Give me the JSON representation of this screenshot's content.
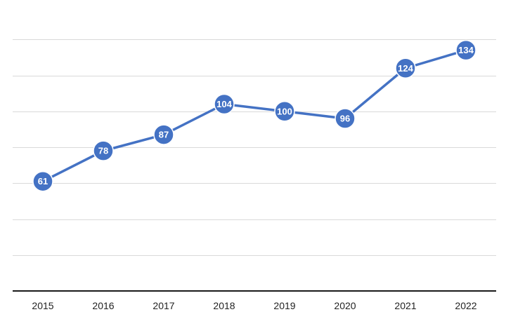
{
  "chart_data": {
    "type": "line",
    "title": "",
    "xlabel": "",
    "ylabel": "",
    "categories": [
      "2015",
      "2016",
      "2017",
      "2018",
      "2019",
      "2020",
      "2021",
      "2022"
    ],
    "series": [
      {
        "name": "Series 1",
        "values": [
          61,
          78,
          87,
          104,
          100,
          96,
          124,
          134
        ],
        "color": "#4472c4"
      }
    ],
    "ylim": [
      0,
      160
    ],
    "ygrid_step": 20,
    "grid": true,
    "show_y_tick_labels": false,
    "data_labels": true
  }
}
